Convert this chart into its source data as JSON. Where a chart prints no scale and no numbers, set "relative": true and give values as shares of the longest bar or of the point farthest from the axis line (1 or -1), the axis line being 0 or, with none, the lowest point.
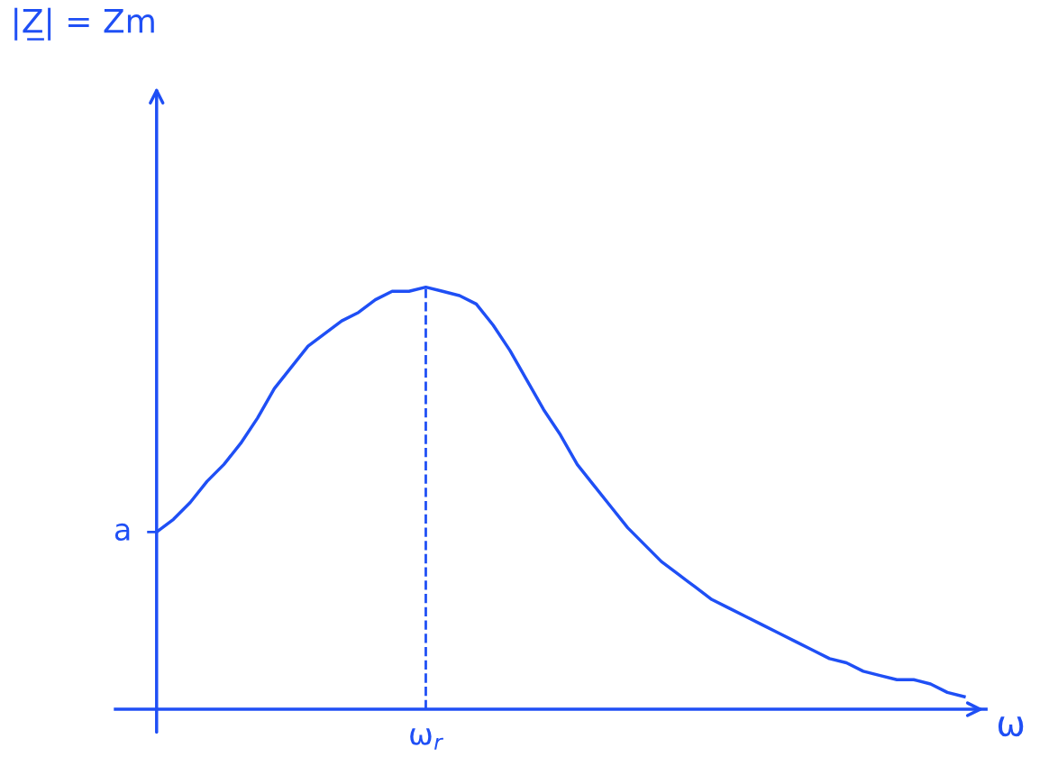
{
  "chart_data": {
    "type": "line",
    "relative": true,
    "xlabel": "ω",
    "color": "#1f4ff5",
    "categories": [
      null,
      null,
      null,
      null,
      null,
      null,
      null,
      null,
      null,
      null,
      null,
      null,
      null,
      null,
      null,
      null,
      null,
      null,
      null,
      null,
      null,
      null,
      null,
      null,
      null,
      null,
      null,
      null,
      null,
      null,
      null,
      null,
      null,
      null,
      null,
      null,
      null,
      null,
      null,
      null,
      null,
      null,
      null,
      null,
      null,
      null,
      null,
      null,
      null
    ],
    "values": [
      0.42,
      0.45,
      0.49,
      0.54,
      0.58,
      0.63,
      0.69,
      0.76,
      0.81,
      0.86,
      0.89,
      0.92,
      0.94,
      0.97,
      0.99,
      0.99,
      1,
      0.99,
      0.98,
      0.96,
      0.91,
      0.85,
      0.78,
      0.71,
      0.65,
      0.58,
      0.53,
      0.48,
      0.43,
      0.39,
      0.35,
      0.32,
      0.29,
      0.26,
      0.24,
      0.22,
      0.2,
      0.18,
      0.16,
      0.14,
      0.12,
      0.11,
      0.09,
      0.08,
      0.07,
      0.07,
      0.06,
      0.04,
      0.03
    ],
    "annotations": [
      "|Z̲| = Zm",
      "a",
      "ω$_{r}$"
    ],
    "marker": "none",
    "line_style": "solid"
  }
}
